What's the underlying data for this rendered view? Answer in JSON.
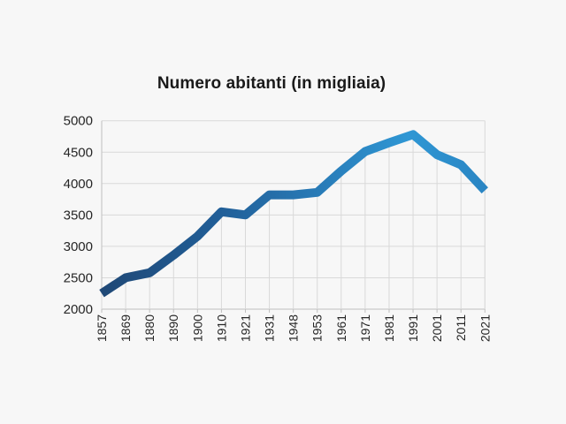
{
  "page": {
    "background_color": "#f7f7f7"
  },
  "chart_data": {
    "type": "line",
    "title": "Numero abitanti (in migliaia)",
    "categories": [
      "1857",
      "1869",
      "1880",
      "1890",
      "1900",
      "1910",
      "1921",
      "1931",
      "1948",
      "1953",
      "1961",
      "1971",
      "1981",
      "1991",
      "2001",
      "2011",
      "2021"
    ],
    "series": [
      {
        "name": "Numero abitanti",
        "values": [
          2250,
          2500,
          2580,
          2860,
          3160,
          3550,
          3500,
          3820,
          3820,
          3860,
          4200,
          4510,
          4650,
          4780,
          4460,
          4300,
          3890
        ]
      }
    ],
    "xlabel": "",
    "ylabel": "",
    "ylim": [
      2000,
      5000
    ],
    "yticks": [
      2000,
      2500,
      3000,
      3500,
      4000,
      4500,
      5000
    ],
    "grid": "horizontal gridlines plus vertical drop lines from each point to x-axis",
    "legend": "none",
    "x_tick_label_rotation_degrees": -90,
    "line_gradient_left_to_right": [
      "#1F4876",
      "#215E97",
      "#2879B5",
      "#2F97D4",
      "#2A85C3"
    ],
    "gridline_color": "#d9d9d9",
    "axis_color": "#bfbfbf",
    "text_color": "#262626",
    "line_width": 10
  }
}
